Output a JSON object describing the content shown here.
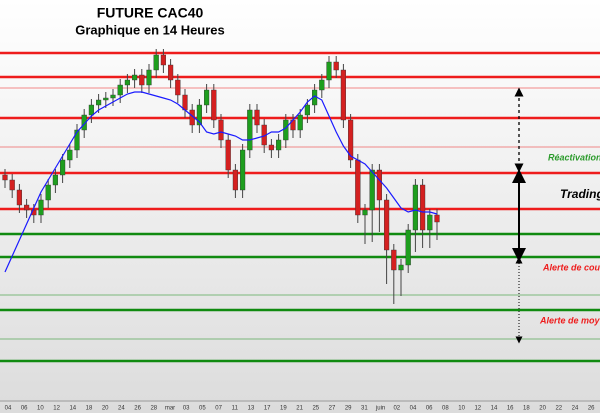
{
  "chart_data": {
    "type": "candlestick",
    "title": "FUTURE CAC40",
    "subtitle": "Graphique en 14 Heures",
    "ylim": [
      0,
      100
    ],
    "up_color": "#1e9e1e",
    "down_color": "#d42020",
    "open": [
      56.25,
      55,
      52.5,
      48.75,
      47.5,
      46.25,
      50,
      53.75,
      56.25,
      60,
      62.5,
      67.5,
      71.25,
      73.75,
      75,
      75.5,
      76.25,
      78.75,
      80,
      81.25,
      78.75,
      82.5,
      86.25,
      83.75,
      80,
      76.25,
      72.5,
      68.75,
      73.75,
      77.5,
      70,
      65,
      57.5,
      52.5,
      62.5,
      72.5,
      68.75,
      63.75,
      62.5,
      65,
      70,
      67.5,
      71.25,
      73.75,
      77.5,
      80,
      84.5,
      82.5,
      70,
      60,
      46.25,
      47.5,
      57.5,
      50,
      37.5,
      32.5,
      33.75,
      42.5,
      53.75,
      42.5,
      46.25
    ],
    "high": [
      57.75,
      56.5,
      54,
      50.25,
      49,
      51.5,
      55.25,
      57.75,
      61.5,
      64,
      69,
      72.75,
      75.25,
      76.5,
      77,
      77.75,
      80.25,
      81.5,
      82.75,
      82.75,
      84,
      87.75,
      87.75,
      85.25,
      81.5,
      77.75,
      74,
      75.25,
      79,
      79,
      71.5,
      66.5,
      59,
      64,
      74,
      74,
      70.25,
      65.25,
      66.5,
      71.5,
      71.5,
      72.75,
      75.25,
      79,
      81.5,
      86,
      86,
      84,
      71.5,
      61.5,
      49,
      59,
      59,
      51.5,
      39,
      35.25,
      44,
      55.25,
      55.25,
      47.75,
      47.75
    ],
    "low": [
      53,
      50.5,
      46.75,
      45.5,
      44.25,
      44.25,
      48,
      51.75,
      54.25,
      58,
      60.5,
      65.5,
      69.25,
      71.75,
      73,
      73.5,
      74.25,
      76.75,
      78,
      76.75,
      76.75,
      80.5,
      81.75,
      78,
      74.25,
      70.5,
      66.75,
      66.75,
      71.75,
      68,
      63,
      55.5,
      50.5,
      50.5,
      60.5,
      66.75,
      61.75,
      60.5,
      60.5,
      63,
      65.5,
      65.5,
      69.25,
      71.75,
      75.5,
      78,
      80.5,
      68,
      58,
      44.25,
      39,
      39.5,
      42,
      29,
      24,
      26,
      31.75,
      37,
      38,
      38,
      40
    ],
    "close": [
      55,
      52.5,
      48.75,
      47.5,
      46.25,
      50,
      53.75,
      56.25,
      60,
      62.5,
      67.5,
      71.25,
      73.75,
      75,
      75.5,
      76.25,
      78.75,
      80,
      81.25,
      78.75,
      82.5,
      86.25,
      83.75,
      80,
      76.25,
      72.5,
      68.75,
      73.75,
      77.5,
      70,
      65,
      57.5,
      52.5,
      62.5,
      72.5,
      68.75,
      63.75,
      62.5,
      65,
      70,
      67.5,
      71.25,
      73.75,
      77.5,
      80,
      84.5,
      82.5,
      70,
      60,
      46.25,
      47.5,
      57.5,
      50,
      37.5,
      32.5,
      33.75,
      42.5,
      53.75,
      42.5,
      46.25,
      44.5
    ],
    "series": [
      {
        "color": "#1a1aff",
        "values": [
          32,
          36,
          40,
          44,
          48,
          52,
          55,
          58,
          61,
          64,
          67,
          69,
          71,
          72.5,
          73.5,
          74.5,
          75.5,
          76.5,
          77,
          77,
          76.5,
          76,
          75.5,
          75,
          74,
          72.5,
          71,
          69.5,
          67,
          66.5,
          67,
          66.5,
          66,
          65,
          65,
          65.5,
          66,
          67,
          67,
          68,
          70,
          72,
          74.5,
          76,
          75,
          71,
          67,
          63.5,
          61,
          60,
          59,
          57,
          55,
          53,
          50.5,
          48,
          47,
          47.5,
          47,
          47,
          46.5
        ]
      }
    ],
    "x_labels": [
      "04",
      "06",
      "10",
      "12",
      "14",
      "18",
      "20",
      "24",
      "26",
      "28",
      "mar",
      "03",
      "05",
      "07",
      "11",
      "13",
      "17",
      "19",
      "21",
      "25",
      "27",
      "29",
      "31",
      "juin",
      "02",
      "04",
      "06",
      "08",
      "10",
      "12",
      "14",
      "16",
      "18",
      "20",
      "22",
      "24",
      "26"
    ],
    "resistance_color": "#ee1c1c",
    "support_color": "#108a10",
    "resistance_levels": [
      86.75,
      80.75,
      70.5,
      56.75,
      47.75
    ],
    "resistance_minor": [
      78,
      63.25
    ],
    "support_levels": [
      41.5,
      35.75,
      22.5,
      9.75
    ],
    "support_minor": [
      26.25,
      15.25
    ],
    "annotations": [
      {
        "text": "Réactivation",
        "color": "#2a9a2a",
        "value": 60.5
      },
      {
        "text": "Trading",
        "color": "#000000",
        "value": 51.25
      },
      {
        "text": "Alerte de cou",
        "color": "#ee1c1c",
        "value": 33
      },
      {
        "text": "Alerte de moy",
        "color": "#ee1c1c",
        "value": 19.75
      }
    ]
  }
}
